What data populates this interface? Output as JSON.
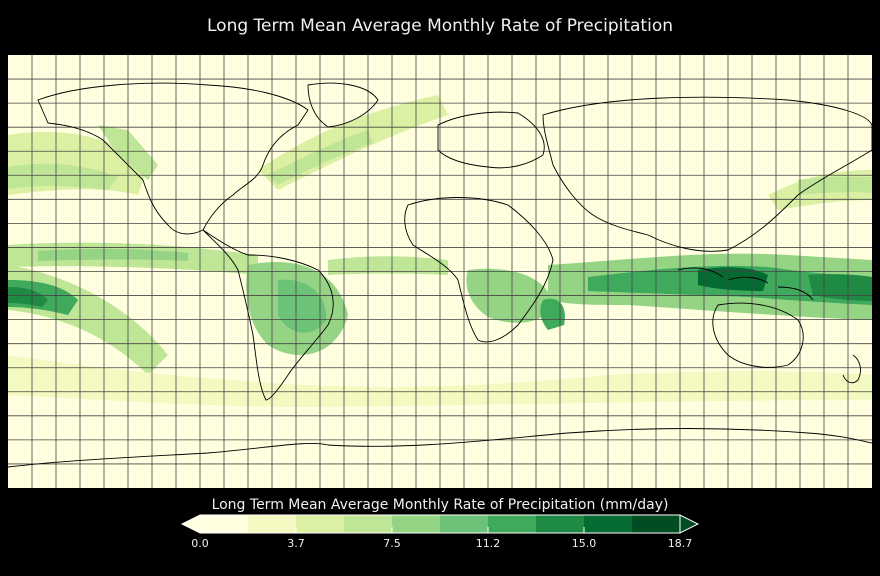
{
  "title": "Long Term Mean Average Monthly Rate of Precipitation",
  "colorbar": {
    "title": "Long Term Mean Average Monthly Rate of Precipitation (mm/day)",
    "tick_labels": [
      "0.0",
      "3.7",
      "7.5",
      "11.2",
      "15.0",
      "18.7"
    ],
    "colors": [
      "#ffffe0",
      "#f3f9c0",
      "#dcf0a4",
      "#bfe596",
      "#96d485",
      "#6cc277",
      "#3fa95c",
      "#1e8a44",
      "#056b32",
      "#004d23"
    ]
  },
  "map": {
    "projection": "equirectangular",
    "ocean_land_base_color": "#ffffe0",
    "graticule_color": "#333333",
    "coastline_color": "#000000"
  }
}
